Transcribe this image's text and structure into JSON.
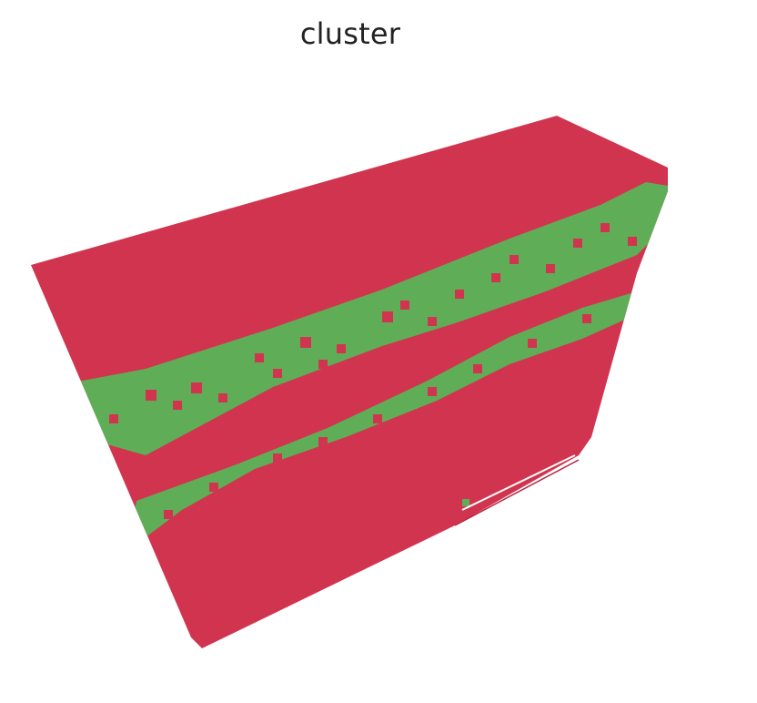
{
  "figure": {
    "title": "cluster"
  },
  "colors": {
    "cluster_a": "#d1344f",
    "cluster_b": "#5fae57",
    "background": "#ffffff"
  },
  "volume": {
    "kind": "3d-voxel-render",
    "clusters": [
      "cluster_a",
      "cluster_b"
    ]
  }
}
